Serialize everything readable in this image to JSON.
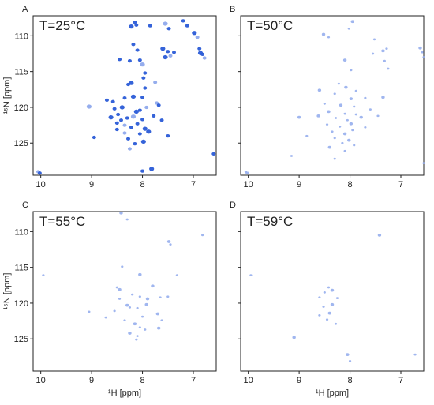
{
  "chart_data": {
    "type": "scatter",
    "description_free": true,
    "xlabel": "¹H [ppm]",
    "ylabel": "¹⁵N [ppm]",
    "xlim": [
      10.15,
      6.55
    ],
    "ylim": [
      129.5,
      107.2
    ],
    "x_ticks": [
      10,
      9,
      8,
      7
    ],
    "y_ticks": [
      110,
      115,
      120,
      125
    ],
    "x_tick_labels": [
      "10",
      "9",
      "8",
      "7"
    ],
    "y_tick_labels": [
      "110",
      "115",
      "120",
      "125"
    ],
    "colors": {
      "peak_strong": "#2a5bd7",
      "peak_weak": "#8fa9ec",
      "axis": "#222222"
    },
    "panels": [
      {
        "letter": "A",
        "title": "T=25°C",
        "points": [
          [
            8.22,
            108.7
          ],
          [
            8.12,
            108.5
          ],
          [
            8.15,
            108.1
          ],
          [
            7.85,
            108.6
          ],
          [
            7.55,
            108.3
          ],
          [
            7.48,
            109.0
          ],
          [
            7.2,
            107.9
          ],
          [
            7.12,
            108.6
          ],
          [
            6.98,
            109.6
          ],
          [
            6.92,
            110.2
          ],
          [
            8.18,
            111.2
          ],
          [
            8.1,
            112.0
          ],
          [
            7.6,
            111.8
          ],
          [
            7.5,
            112.2
          ],
          [
            7.45,
            112.8
          ],
          [
            7.38,
            112.3
          ],
          [
            7.55,
            113.0
          ],
          [
            6.88,
            111.8
          ],
          [
            6.82,
            112.6
          ],
          [
            6.78,
            113.1
          ],
          [
            6.86,
            112.4
          ],
          [
            8.45,
            113.3
          ],
          [
            8.25,
            113.5
          ],
          [
            8.05,
            113.4
          ],
          [
            8.0,
            114.0
          ],
          [
            7.95,
            115.2
          ],
          [
            7.98,
            115.9
          ],
          [
            8.28,
            116.8
          ],
          [
            8.22,
            116.6
          ],
          [
            7.75,
            116.5
          ],
          [
            7.95,
            117.3
          ],
          [
            8.35,
            118.7
          ],
          [
            8.18,
            118.5
          ],
          [
            8.0,
            118.6
          ],
          [
            7.72,
            119.4
          ],
          [
            7.68,
            119.7
          ],
          [
            8.4,
            120.0
          ],
          [
            8.55,
            120.2
          ],
          [
            8.05,
            120.4
          ],
          [
            7.92,
            120.0
          ],
          [
            8.12,
            120.6
          ],
          [
            8.48,
            121.0
          ],
          [
            8.3,
            121.5
          ],
          [
            8.42,
            121.8
          ],
          [
            8.18,
            121.3
          ],
          [
            8.0,
            121.7
          ],
          [
            7.78,
            121.2
          ],
          [
            7.62,
            121.8
          ],
          [
            8.62,
            121.4
          ],
          [
            8.35,
            122.5
          ],
          [
            8.22,
            122.8
          ],
          [
            8.1,
            122.3
          ],
          [
            7.95,
            123.0
          ],
          [
            8.5,
            123.1
          ],
          [
            8.35,
            123.6
          ],
          [
            8.05,
            123.7
          ],
          [
            7.88,
            123.4
          ],
          [
            8.28,
            124.4
          ],
          [
            8.15,
            125.1
          ],
          [
            8.25,
            125.8
          ],
          [
            7.98,
            124.8
          ],
          [
            8.5,
            122.2
          ],
          [
            8.58,
            119.2
          ],
          [
            7.5,
            124.0
          ],
          [
            9.05,
            119.9
          ],
          [
            8.95,
            124.2
          ],
          [
            8.7,
            119.0
          ],
          [
            8.0,
            128.9
          ],
          [
            7.82,
            128.6
          ],
          [
            10.05,
            129.0
          ],
          [
            10.02,
            129.2
          ],
          [
            6.6,
            126.5
          ]
        ]
      },
      {
        "letter": "B",
        "title": "T=50°C",
        "points": [
          [
            7.95,
            108.0
          ],
          [
            8.02,
            109.0
          ],
          [
            8.42,
            110.2
          ],
          [
            8.52,
            109.8
          ],
          [
            7.52,
            110.5
          ],
          [
            7.55,
            112.5
          ],
          [
            7.35,
            112.1
          ],
          [
            7.28,
            111.8
          ],
          [
            7.32,
            113.5
          ],
          [
            6.62,
            111.7
          ],
          [
            6.58,
            112.3
          ],
          [
            6.55,
            113.0
          ],
          [
            8.1,
            113.4
          ],
          [
            7.98,
            114.8
          ],
          [
            8.22,
            116.7
          ],
          [
            8.08,
            117.2
          ],
          [
            7.88,
            117.7
          ],
          [
            8.3,
            118.1
          ],
          [
            7.98,
            118.8
          ],
          [
            7.7,
            118.7
          ],
          [
            8.5,
            119.5
          ],
          [
            8.18,
            119.7
          ],
          [
            7.92,
            119.9
          ],
          [
            7.6,
            120.3
          ],
          [
            8.42,
            120.6
          ],
          [
            8.1,
            120.9
          ],
          [
            7.88,
            121.0
          ],
          [
            8.62,
            121.2
          ],
          [
            8.28,
            121.5
          ],
          [
            8.05,
            121.8
          ],
          [
            7.78,
            121.4
          ],
          [
            8.45,
            122.4
          ],
          [
            8.2,
            122.7
          ],
          [
            7.98,
            122.3
          ],
          [
            7.7,
            122.8
          ],
          [
            8.35,
            123.4
          ],
          [
            8.1,
            123.7
          ],
          [
            7.95,
            123.2
          ],
          [
            8.3,
            124.3
          ],
          [
            8.02,
            124.6
          ],
          [
            8.15,
            125.0
          ],
          [
            7.92,
            125.3
          ],
          [
            8.4,
            125.6
          ],
          [
            8.1,
            126.1
          ],
          [
            8.3,
            127.2
          ],
          [
            9.0,
            121.4
          ],
          [
            8.85,
            124.0
          ],
          [
            7.45,
            121.2
          ],
          [
            7.35,
            118.6
          ],
          [
            9.15,
            126.8
          ],
          [
            10.05,
            129.0
          ],
          [
            10.02,
            129.2
          ],
          [
            6.55,
            127.8
          ],
          [
            7.25,
            114.6
          ],
          [
            8.6,
            117.6
          ]
        ]
      },
      {
        "letter": "C",
        "title": "T=55°C",
        "points": [
          [
            8.42,
            107.4
          ],
          [
            8.3,
            108.3
          ],
          [
            6.82,
            110.5
          ],
          [
            7.48,
            111.4
          ],
          [
            7.45,
            111.8
          ],
          [
            8.4,
            114.9
          ],
          [
            8.05,
            116.0
          ],
          [
            7.32,
            116.1
          ],
          [
            8.5,
            117.8
          ],
          [
            8.45,
            118.1
          ],
          [
            8.2,
            118.8
          ],
          [
            8.05,
            119.1
          ],
          [
            7.9,
            119.4
          ],
          [
            7.65,
            119.2
          ],
          [
            7.5,
            119.1
          ],
          [
            8.3,
            120.3
          ],
          [
            8.25,
            120.6
          ],
          [
            8.1,
            120.7
          ],
          [
            7.92,
            120.2
          ],
          [
            8.55,
            121.1
          ],
          [
            8.0,
            121.9
          ],
          [
            7.7,
            121.5
          ],
          [
            7.62,
            122.4
          ],
          [
            8.35,
            122.4
          ],
          [
            8.15,
            122.9
          ],
          [
            8.05,
            123.4
          ],
          [
            7.95,
            123.7
          ],
          [
            8.25,
            124.2
          ],
          [
            8.1,
            124.6
          ],
          [
            8.12,
            125.1
          ],
          [
            7.68,
            123.5
          ],
          [
            8.45,
            119.4
          ],
          [
            8.72,
            122.0
          ],
          [
            7.8,
            117.6
          ],
          [
            9.05,
            121.2
          ],
          [
            9.95,
            116.1
          ]
        ]
      },
      {
        "letter": "D",
        "title": "T=59°C",
        "points": [
          [
            7.42,
            110.5
          ],
          [
            8.42,
            117.8
          ],
          [
            8.5,
            118.5
          ],
          [
            8.35,
            118.2
          ],
          [
            8.6,
            119.2
          ],
          [
            8.25,
            119.3
          ],
          [
            8.35,
            120.2
          ],
          [
            8.52,
            120.5
          ],
          [
            8.6,
            121.7
          ],
          [
            8.4,
            121.4
          ],
          [
            8.45,
            122.3
          ],
          [
            8.28,
            122.9
          ],
          [
            8.05,
            127.2
          ],
          [
            8.0,
            128.1
          ],
          [
            9.95,
            116.1
          ],
          [
            9.1,
            124.8
          ],
          [
            6.72,
            127.2
          ]
        ]
      }
    ]
  }
}
